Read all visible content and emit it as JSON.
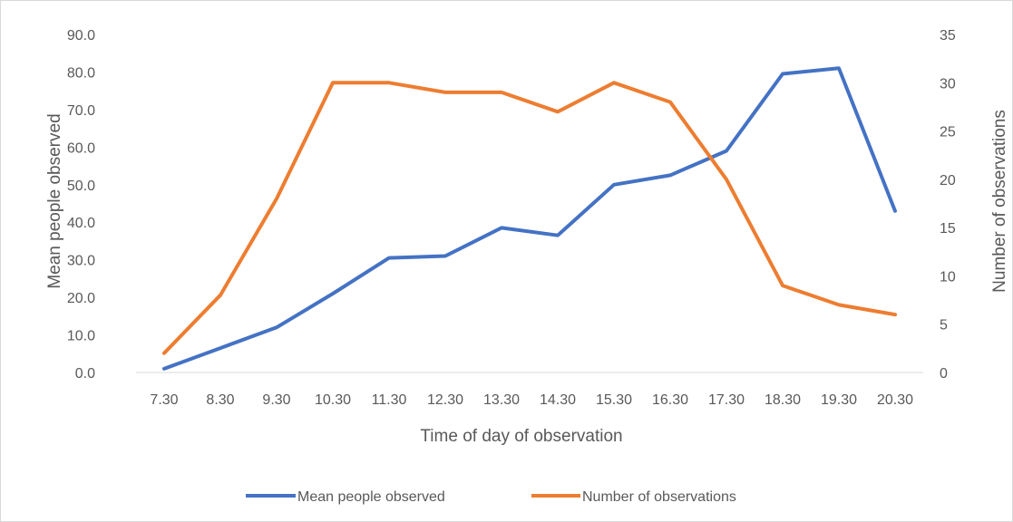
{
  "chart_data": {
    "type": "line",
    "categories": [
      "7.30",
      "8.30",
      "9.30",
      "10.30",
      "11.30",
      "12.30",
      "13.30",
      "14.30",
      "15.30",
      "16.30",
      "17.30",
      "18.30",
      "19.30",
      "20.30"
    ],
    "series": [
      {
        "name": "Mean people observed",
        "axis": "left",
        "color": "#4472c4",
        "values": [
          1.0,
          6.5,
          12.0,
          21.0,
          30.5,
          31.0,
          38.5,
          36.5,
          50.0,
          52.5,
          59.0,
          79.5,
          81.0,
          43.0
        ]
      },
      {
        "name": "Number of observations",
        "axis": "right",
        "color": "#ed7d31",
        "values": [
          2,
          8,
          18,
          30,
          30,
          29,
          29,
          27,
          30,
          28,
          20,
          9,
          7,
          6
        ]
      }
    ],
    "xlabel": "Time of day of observation",
    "ylabel": "Mean people observed",
    "y2label": "Number of observations",
    "ylim": [
      0,
      90
    ],
    "y2lim": [
      0,
      35
    ],
    "yticks": [
      "0.0",
      "10.0",
      "20.0",
      "30.0",
      "40.0",
      "50.0",
      "60.0",
      "70.0",
      "80.0",
      "90.0"
    ],
    "y2ticks": [
      "0",
      "5",
      "10",
      "15",
      "20",
      "25",
      "30",
      "35"
    ],
    "grid": false,
    "legend": "bottom"
  }
}
